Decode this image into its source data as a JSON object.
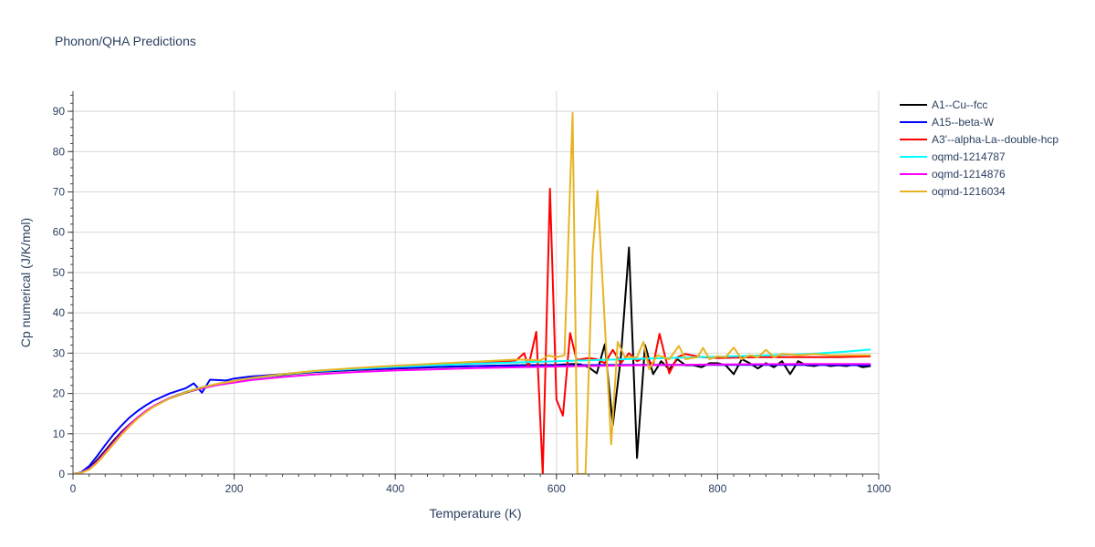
{
  "chart_data": {
    "type": "line",
    "title": "Phonon/QHA Predictions",
    "xlabel": "Temperature (K)",
    "ylabel": "Cp numerical (J/K/mol)",
    "xlim": [
      0,
      1000
    ],
    "ylim": [
      0,
      95
    ],
    "xticks": [
      0,
      200,
      400,
      600,
      800,
      1000
    ],
    "yticks": [
      0,
      10,
      20,
      30,
      40,
      50,
      60,
      70,
      80,
      90
    ],
    "grid": true,
    "legend_position": "top-right",
    "series": [
      {
        "name": "A1--Cu--fcc",
        "color": "#000000",
        "points": [
          [
            0,
            0
          ],
          [
            10,
            0.3
          ],
          [
            20,
            1.5
          ],
          [
            30,
            3.5
          ],
          [
            40,
            5.8
          ],
          [
            50,
            8.2
          ],
          [
            60,
            10.4
          ],
          [
            70,
            12.3
          ],
          [
            80,
            14
          ],
          [
            90,
            15.5
          ],
          [
            100,
            16.8
          ],
          [
            120,
            18.8
          ],
          [
            140,
            20.2
          ],
          [
            160,
            21.3
          ],
          [
            180,
            22.2
          ],
          [
            200,
            23
          ],
          [
            220,
            23.7
          ],
          [
            240,
            24.2
          ],
          [
            260,
            24.6
          ],
          [
            280,
            25
          ],
          [
            300,
            25.3
          ],
          [
            350,
            25.8
          ],
          [
            400,
            26.2
          ],
          [
            450,
            26.5
          ],
          [
            500,
            26.8
          ],
          [
            550,
            27
          ],
          [
            600,
            27.1
          ],
          [
            620,
            27.3
          ],
          [
            630,
            27.2
          ],
          [
            640,
            26.5
          ],
          [
            650,
            25
          ],
          [
            660,
            32.2
          ],
          [
            670,
            12.2
          ],
          [
            680,
            29
          ],
          [
            690,
            56.2
          ],
          [
            700,
            4
          ],
          [
            710,
            32
          ],
          [
            720,
            24.8
          ],
          [
            730,
            28
          ],
          [
            740,
            26
          ],
          [
            750,
            28.5
          ],
          [
            760,
            27
          ],
          [
            770,
            27
          ],
          [
            780,
            26.5
          ],
          [
            790,
            27.5
          ],
          [
            800,
            27.5
          ],
          [
            810,
            27
          ],
          [
            820,
            24.8
          ],
          [
            830,
            28.5
          ],
          [
            840,
            27.5
          ],
          [
            850,
            26.2
          ],
          [
            860,
            27.5
          ],
          [
            870,
            26.5
          ],
          [
            880,
            28
          ],
          [
            890,
            24.8
          ],
          [
            900,
            28
          ],
          [
            910,
            27
          ],
          [
            920,
            26.8
          ],
          [
            930,
            27.2
          ],
          [
            940,
            26.8
          ],
          [
            950,
            27
          ],
          [
            960,
            26.8
          ],
          [
            970,
            27.2
          ],
          [
            980,
            26.5
          ],
          [
            990,
            26.8
          ]
        ]
      },
      {
        "name": "A15--beta-W",
        "color": "#0000ff",
        "points": [
          [
            0,
            0
          ],
          [
            10,
            0.4
          ],
          [
            20,
            2
          ],
          [
            30,
            4.5
          ],
          [
            40,
            7.2
          ],
          [
            50,
            9.8
          ],
          [
            60,
            12
          ],
          [
            70,
            14
          ],
          [
            80,
            15.6
          ],
          [
            90,
            17
          ],
          [
            100,
            18.2
          ],
          [
            120,
            20
          ],
          [
            140,
            21.3
          ],
          [
            150,
            22.5
          ],
          [
            160,
            20.2
          ],
          [
            170,
            23.4
          ],
          [
            190,
            23.2
          ],
          [
            200,
            23.7
          ],
          [
            220,
            24.2
          ],
          [
            240,
            24.5
          ],
          [
            260,
            24.8
          ],
          [
            280,
            25.1
          ],
          [
            300,
            25.4
          ],
          [
            350,
            25.9
          ],
          [
            400,
            26.3
          ],
          [
            450,
            26.6
          ],
          [
            500,
            26.8
          ],
          [
            600,
            27
          ],
          [
            700,
            27.1
          ],
          [
            800,
            27.1
          ],
          [
            900,
            27.1
          ],
          [
            990,
            27
          ]
        ]
      },
      {
        "name": "A3'--alpha-La--double-hcp",
        "color": "#ff0000",
        "points": [
          [
            0,
            0
          ],
          [
            10,
            0.3
          ],
          [
            20,
            1.2
          ],
          [
            30,
            3
          ],
          [
            40,
            5.2
          ],
          [
            50,
            7.6
          ],
          [
            60,
            9.9
          ],
          [
            70,
            12
          ],
          [
            80,
            13.9
          ],
          [
            90,
            15.5
          ],
          [
            100,
            16.8
          ],
          [
            120,
            18.9
          ],
          [
            140,
            20.4
          ],
          [
            160,
            21.5
          ],
          [
            180,
            22.4
          ],
          [
            200,
            23.1
          ],
          [
            220,
            23.7
          ],
          [
            240,
            24.2
          ],
          [
            260,
            24.7
          ],
          [
            280,
            25.1
          ],
          [
            300,
            25.5
          ],
          [
            350,
            26.2
          ],
          [
            400,
            26.8
          ],
          [
            450,
            27.3
          ],
          [
            500,
            27.7
          ],
          [
            540,
            28
          ],
          [
            550,
            28.2
          ],
          [
            560,
            30
          ],
          [
            565,
            26.5
          ],
          [
            575,
            35.3
          ],
          [
            583,
            0
          ],
          [
            592,
            70.8
          ],
          [
            600,
            18.5
          ],
          [
            608,
            14.5
          ],
          [
            617,
            35
          ],
          [
            625,
            28.3
          ],
          [
            640,
            28.8
          ],
          [
            650,
            28.5
          ],
          [
            660,
            27.5
          ],
          [
            670,
            30.8
          ],
          [
            680,
            27.5
          ],
          [
            690,
            30
          ],
          [
            700,
            28
          ],
          [
            710,
            29
          ],
          [
            720,
            27
          ],
          [
            728,
            34.8
          ],
          [
            740,
            25
          ],
          [
            750,
            29
          ],
          [
            760,
            29.8
          ],
          [
            780,
            29
          ],
          [
            800,
            28.8
          ],
          [
            850,
            29
          ],
          [
            900,
            29
          ],
          [
            950,
            29
          ],
          [
            990,
            29.2
          ]
        ]
      },
      {
        "name": "oqmd-1214787",
        "color": "#00ffff",
        "points": [
          [
            0,
            0
          ],
          [
            10,
            0.3
          ],
          [
            20,
            1.2
          ],
          [
            30,
            3
          ],
          [
            40,
            5.2
          ],
          [
            50,
            7.6
          ],
          [
            60,
            9.9
          ],
          [
            70,
            12
          ],
          [
            80,
            13.9
          ],
          [
            90,
            15.5
          ],
          [
            100,
            16.8
          ],
          [
            120,
            18.9
          ],
          [
            140,
            20.4
          ],
          [
            160,
            21.5
          ],
          [
            180,
            22.4
          ],
          [
            200,
            23.1
          ],
          [
            220,
            23.7
          ],
          [
            240,
            24.2
          ],
          [
            260,
            24.7
          ],
          [
            280,
            25.1
          ],
          [
            300,
            25.5
          ],
          [
            350,
            26.1
          ],
          [
            400,
            26.6
          ],
          [
            450,
            27
          ],
          [
            500,
            27.4
          ],
          [
            600,
            28
          ],
          [
            700,
            28.6
          ],
          [
            800,
            29.1
          ],
          [
            850,
            29.4
          ],
          [
            900,
            29.7
          ],
          [
            930,
            30
          ],
          [
            960,
            30.4
          ],
          [
            990,
            30.9
          ]
        ]
      },
      {
        "name": "oqmd-1214876",
        "color": "#ff00ff",
        "points": [
          [
            0,
            0
          ],
          [
            10,
            0.3
          ],
          [
            20,
            1.3
          ],
          [
            30,
            3.1
          ],
          [
            40,
            5.4
          ],
          [
            50,
            7.8
          ],
          [
            60,
            10.1
          ],
          [
            70,
            12.2
          ],
          [
            80,
            14
          ],
          [
            90,
            15.6
          ],
          [
            100,
            16.9
          ],
          [
            120,
            18.9
          ],
          [
            140,
            20.3
          ],
          [
            160,
            21.3
          ],
          [
            180,
            22.1
          ],
          [
            200,
            22.7
          ],
          [
            220,
            23.3
          ],
          [
            240,
            23.7
          ],
          [
            260,
            24.1
          ],
          [
            280,
            24.4
          ],
          [
            300,
            24.7
          ],
          [
            350,
            25.3
          ],
          [
            400,
            25.7
          ],
          [
            450,
            26
          ],
          [
            500,
            26.3
          ],
          [
            600,
            26.7
          ],
          [
            700,
            27
          ],
          [
            800,
            27.2
          ],
          [
            900,
            27.3
          ],
          [
            990,
            27.3
          ]
        ]
      },
      {
        "name": "oqmd-1216034",
        "color": "#e6b422",
        "points": [
          [
            0,
            0
          ],
          [
            10,
            0.3
          ],
          [
            20,
            1.1
          ],
          [
            30,
            2.8
          ],
          [
            40,
            5
          ],
          [
            50,
            7.4
          ],
          [
            60,
            9.7
          ],
          [
            70,
            11.8
          ],
          [
            80,
            13.7
          ],
          [
            90,
            15.3
          ],
          [
            100,
            16.7
          ],
          [
            120,
            18.8
          ],
          [
            140,
            20.3
          ],
          [
            160,
            21.5
          ],
          [
            180,
            22.4
          ],
          [
            200,
            23.1
          ],
          [
            220,
            23.8
          ],
          [
            240,
            24.3
          ],
          [
            260,
            24.8
          ],
          [
            280,
            25.2
          ],
          [
            300,
            25.6
          ],
          [
            350,
            26.3
          ],
          [
            400,
            26.9
          ],
          [
            450,
            27.4
          ],
          [
            500,
            27.9
          ],
          [
            550,
            28.4
          ],
          [
            580,
            28.2
          ],
          [
            590,
            29.4
          ],
          [
            600,
            29
          ],
          [
            610,
            29.5
          ],
          [
            620,
            89.6
          ],
          [
            626,
            0
          ],
          [
            636,
            0
          ],
          [
            645,
            55
          ],
          [
            651,
            70.3
          ],
          [
            658,
            45
          ],
          [
            668,
            7.4
          ],
          [
            676,
            32.8
          ],
          [
            685,
            29
          ],
          [
            700,
            29
          ],
          [
            708,
            32.8
          ],
          [
            715,
            26
          ],
          [
            725,
            29.5
          ],
          [
            740,
            28.5
          ],
          [
            752,
            31.8
          ],
          [
            760,
            28.5
          ],
          [
            775,
            29
          ],
          [
            782,
            31.3
          ],
          [
            790,
            28.5
          ],
          [
            800,
            29.2
          ],
          [
            810,
            29
          ],
          [
            820,
            31.4
          ],
          [
            830,
            28.5
          ],
          [
            840,
            29.5
          ],
          [
            850,
            29
          ],
          [
            860,
            30.8
          ],
          [
            870,
            29
          ],
          [
            880,
            29.8
          ],
          [
            900,
            29.5
          ],
          [
            920,
            29.8
          ],
          [
            940,
            29.5
          ],
          [
            960,
            29.5
          ],
          [
            990,
            29.5
          ]
        ]
      }
    ]
  }
}
